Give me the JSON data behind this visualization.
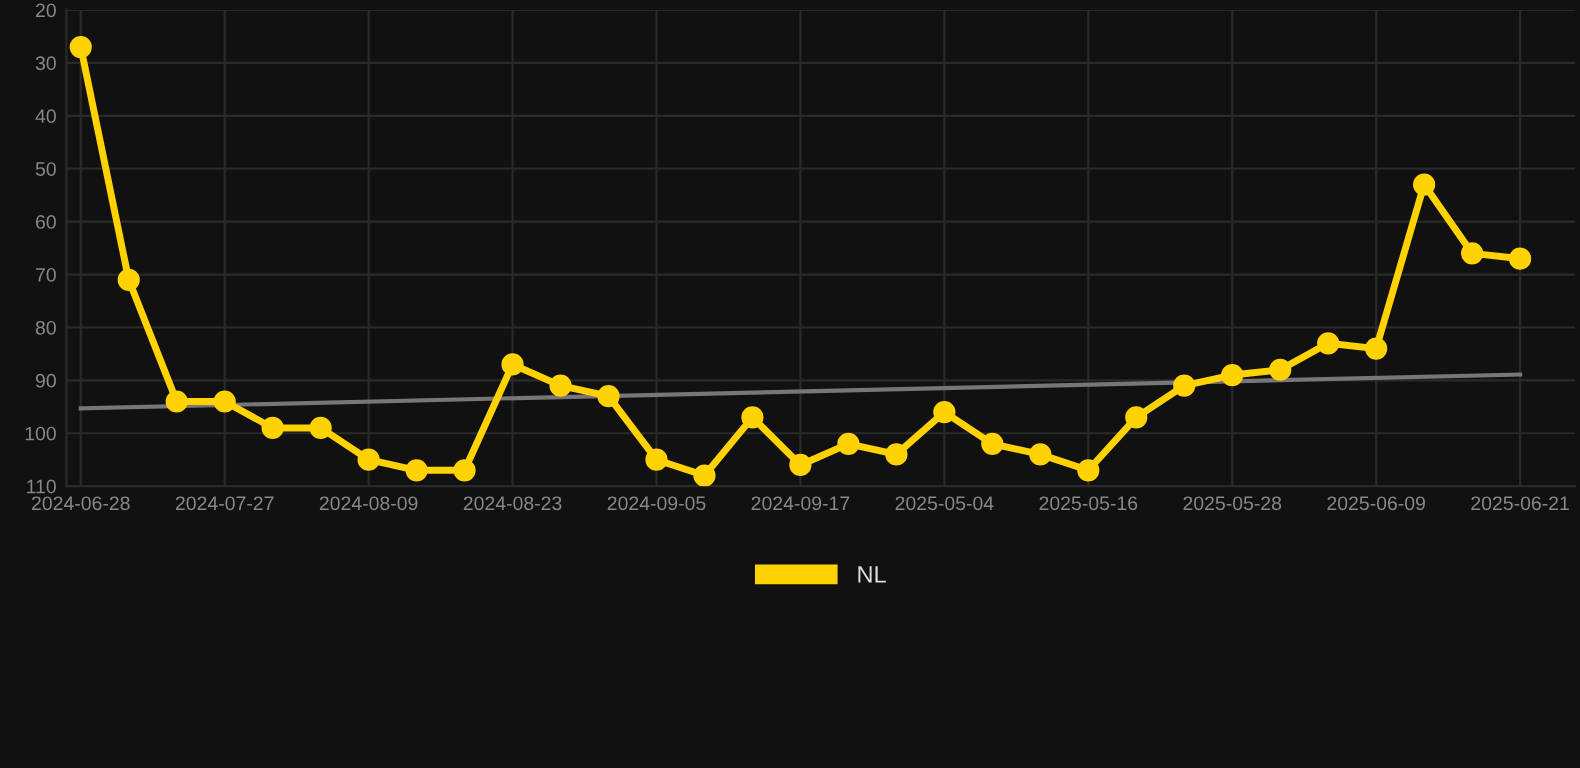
{
  "chart_data": {
    "type": "line",
    "categories": [
      "2024-06-28",
      null,
      null,
      "2024-07-27",
      null,
      null,
      "2024-08-09",
      null,
      null,
      "2024-08-23",
      null,
      null,
      "2024-09-05",
      null,
      null,
      "2024-09-17",
      null,
      null,
      "2025-05-04",
      null,
      null,
      "2025-05-16",
      null,
      null,
      "2025-05-28",
      null,
      null,
      "2025-06-09",
      null,
      null,
      "2025-06-21"
    ],
    "series": [
      {
        "name": "NL",
        "color": "#ffd200",
        "marker": "circle",
        "values": [
          27,
          71,
          94,
          94,
          99,
          99,
          105,
          107,
          107,
          87,
          91,
          93,
          105,
          108,
          97,
          106,
          102,
          104,
          96,
          102,
          104,
          107,
          97,
          91,
          89,
          88,
          83,
          84,
          53,
          66,
          67
        ]
      },
      {
        "color": "#777777",
        "marker": "none",
        "values": [
          95.3,
          null,
          null,
          null,
          null,
          null,
          null,
          null,
          null,
          null,
          null,
          null,
          null,
          null,
          null,
          null,
          null,
          null,
          null,
          null,
          null,
          null,
          null,
          null,
          null,
          null,
          null,
          null,
          null,
          null,
          88.9
        ]
      }
    ],
    "ylim": [
      110,
      20
    ],
    "yticks": [
      20,
      30,
      40,
      50,
      60,
      70,
      80,
      90,
      100,
      110
    ],
    "grid": true,
    "legend": "bottom",
    "line_style": "solid"
  }
}
